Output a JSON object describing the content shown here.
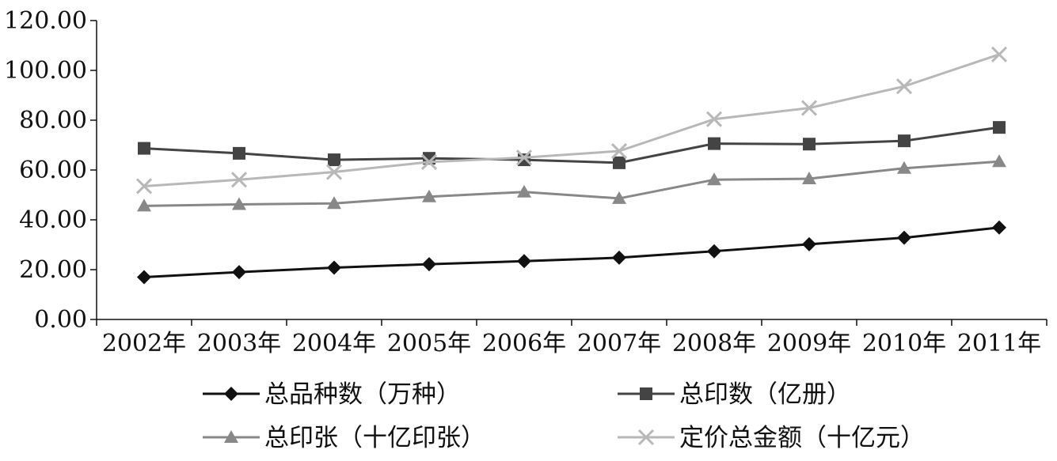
{
  "chart_data": {
    "type": "line",
    "title": "",
    "xlabel": "",
    "ylabel": "",
    "categories": [
      "2002年",
      "2003年",
      "2004年",
      "2005年",
      "2006年",
      "2007年",
      "2008年",
      "2009年",
      "2010年",
      "2011年"
    ],
    "ylim": [
      0,
      120
    ],
    "yticks": [
      "0.00",
      "20.00",
      "40.00",
      "60.00",
      "80.00",
      "100.00",
      "120.00"
    ],
    "grid": false,
    "legend_position": "bottom",
    "series": [
      {
        "name": "总品种数（万种）",
        "marker": "diamond",
        "color": "#111111",
        "values": [
          17.0,
          19.0,
          20.8,
          22.2,
          23.4,
          24.8,
          27.4,
          30.2,
          32.8,
          36.9
        ]
      },
      {
        "name": "总印数（亿册）",
        "marker": "square",
        "color": "#444444",
        "values": [
          68.7,
          66.7,
          64.1,
          64.7,
          64.1,
          62.9,
          70.6,
          70.4,
          71.7,
          77.1
        ]
      },
      {
        "name": "总印张（十亿印张）",
        "marker": "triangle",
        "color": "#888888",
        "values": [
          45.6,
          46.2,
          46.6,
          49.3,
          51.2,
          48.6,
          56.1,
          56.5,
          60.7,
          63.4
        ]
      },
      {
        "name": "定价总金额（十亿元）",
        "marker": "x",
        "color": "#b8b8b8",
        "values": [
          53.5,
          56.1,
          59.2,
          63.2,
          65.0,
          67.6,
          80.4,
          84.9,
          93.6,
          106.4
        ]
      }
    ]
  }
}
